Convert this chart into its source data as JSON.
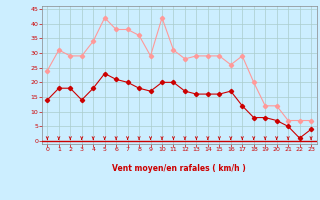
{
  "x": [
    0,
    1,
    2,
    3,
    4,
    5,
    6,
    7,
    8,
    9,
    10,
    11,
    12,
    13,
    14,
    15,
    16,
    17,
    18,
    19,
    20,
    21,
    22,
    23
  ],
  "avg_wind": [
    14,
    18,
    18,
    14,
    18,
    23,
    21,
    20,
    18,
    17,
    20,
    20,
    17,
    16,
    16,
    16,
    17,
    12,
    8,
    8,
    7,
    5,
    1,
    4
  ],
  "gust_wind": [
    24,
    31,
    29,
    29,
    34,
    42,
    38,
    38,
    36,
    29,
    42,
    31,
    28,
    29,
    29,
    29,
    26,
    29,
    20,
    12,
    12,
    7,
    7,
    7
  ],
  "avg_color": "#cc0000",
  "gust_color": "#ff9999",
  "bg_color": "#cceeff",
  "grid_color": "#aacccc",
  "xlabel": "Vent moyen/en rafales ( km/h )",
  "xlabel_color": "#cc0000",
  "tick_color": "#cc0000",
  "ylim": [
    -1,
    46
  ],
  "yticks": [
    0,
    5,
    10,
    15,
    20,
    25,
    30,
    35,
    40,
    45
  ],
  "xticks": [
    0,
    1,
    2,
    3,
    4,
    5,
    6,
    7,
    8,
    9,
    10,
    11,
    12,
    13,
    14,
    15,
    16,
    17,
    18,
    19,
    20,
    21,
    22,
    23
  ],
  "arrow_color": "#cc0000",
  "hline_color": "#cc0000"
}
